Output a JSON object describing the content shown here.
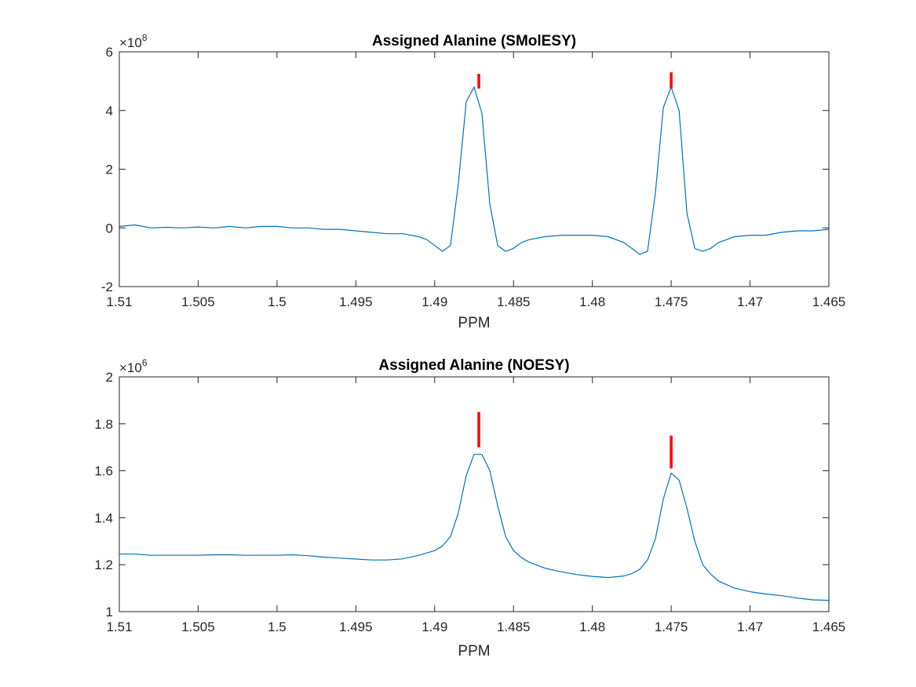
{
  "chart_data": [
    {
      "type": "line",
      "title": "Assigned Alanine (SMolESY)",
      "xlabel": "PPM",
      "ylabel": "",
      "x_reversed": true,
      "xlim": [
        1.465,
        1.51
      ],
      "ylim": [
        -2,
        6
      ],
      "y_multiplier": "×10",
      "y_exponent": "8",
      "xticks": [
        1.51,
        1.505,
        1.5,
        1.495,
        1.49,
        1.485,
        1.48,
        1.475,
        1.47,
        1.465
      ],
      "xtick_labels": [
        "1.51",
        "1.505",
        "1.5",
        "1.495",
        "1.49",
        "1.485",
        "1.48",
        "1.475",
        "1.47",
        "1.465"
      ],
      "yticks": [
        -2,
        0,
        2,
        4,
        6
      ],
      "ytick_labels": [
        "-2",
        "0",
        "2",
        "4",
        "6"
      ],
      "grid": false,
      "line_color": "#0072BD",
      "marker_color": "#FF0000",
      "series": [
        {
          "x": [
            1.51,
            1.509,
            1.508,
            1.507,
            1.506,
            1.505,
            1.504,
            1.503,
            1.502,
            1.501,
            1.5,
            1.499,
            1.498,
            1.497,
            1.496,
            1.495,
            1.494,
            1.493,
            1.492,
            1.491,
            1.4905,
            1.4895,
            1.489,
            1.4885,
            1.488,
            1.4875,
            1.487,
            1.4865,
            1.486,
            1.4855,
            1.485,
            1.4845,
            1.484,
            1.483,
            1.482,
            1.481,
            1.48,
            1.479,
            1.478,
            1.4775,
            1.477,
            1.4765,
            1.476,
            1.4755,
            1.475,
            1.4745,
            1.474,
            1.4735,
            1.473,
            1.4725,
            1.472,
            1.471,
            1.47,
            1.469,
            1.468,
            1.467,
            1.466,
            1.465
          ],
          "y": [
            0.05,
            0.1,
            0.0,
            0.02,
            0.0,
            0.03,
            0.0,
            0.05,
            0.0,
            0.05,
            0.05,
            0.0,
            0.0,
            -0.05,
            -0.05,
            -0.1,
            -0.15,
            -0.2,
            -0.2,
            -0.3,
            -0.4,
            -0.8,
            -0.6,
            1.5,
            4.3,
            4.8,
            3.9,
            0.8,
            -0.6,
            -0.8,
            -0.7,
            -0.5,
            -0.4,
            -0.3,
            -0.25,
            -0.25,
            -0.25,
            -0.3,
            -0.5,
            -0.7,
            -0.9,
            -0.8,
            1.2,
            4.1,
            4.8,
            4.0,
            0.5,
            -0.7,
            -0.8,
            -0.7,
            -0.5,
            -0.3,
            -0.25,
            -0.25,
            -0.15,
            -0.1,
            -0.1,
            -0.05
          ]
        }
      ],
      "peak_markers": [
        {
          "x": 1.4872,
          "y_from": 4.75,
          "y_to": 5.25
        },
        {
          "x": 1.475,
          "y_from": 4.75,
          "y_to": 5.3
        }
      ]
    },
    {
      "type": "line",
      "title": "Assigned Alanine (NOESY)",
      "xlabel": "PPM",
      "ylabel": "",
      "x_reversed": true,
      "xlim": [
        1.465,
        1.51
      ],
      "ylim": [
        1.0,
        2.0
      ],
      "y_multiplier": "×10",
      "y_exponent": "6",
      "xticks": [
        1.51,
        1.505,
        1.5,
        1.495,
        1.49,
        1.485,
        1.48,
        1.475,
        1.47,
        1.465
      ],
      "xtick_labels": [
        "1.51",
        "1.505",
        "1.5",
        "1.495",
        "1.49",
        "1.485",
        "1.48",
        "1.475",
        "1.47",
        "1.465"
      ],
      "yticks": [
        1.0,
        1.2,
        1.4,
        1.6,
        1.8,
        2.0
      ],
      "ytick_labels": [
        "1",
        "1.2",
        "1.4",
        "1.6",
        "1.8",
        "2"
      ],
      "grid": false,
      "line_color": "#0072BD",
      "marker_color": "#FF0000",
      "series": [
        {
          "x": [
            1.51,
            1.509,
            1.508,
            1.507,
            1.506,
            1.505,
            1.504,
            1.503,
            1.502,
            1.501,
            1.5,
            1.499,
            1.498,
            1.497,
            1.496,
            1.495,
            1.494,
            1.493,
            1.492,
            1.491,
            1.4905,
            1.49,
            1.4895,
            1.489,
            1.4885,
            1.488,
            1.4875,
            1.487,
            1.4865,
            1.486,
            1.4855,
            1.485,
            1.4845,
            1.484,
            1.483,
            1.482,
            1.481,
            1.48,
            1.479,
            1.478,
            1.4775,
            1.477,
            1.4765,
            1.476,
            1.4755,
            1.475,
            1.4745,
            1.474,
            1.4735,
            1.473,
            1.4725,
            1.472,
            1.471,
            1.47,
            1.469,
            1.468,
            1.467,
            1.466,
            1.465
          ],
          "y": [
            1.245,
            1.245,
            1.24,
            1.24,
            1.24,
            1.24,
            1.242,
            1.242,
            1.24,
            1.24,
            1.24,
            1.242,
            1.238,
            1.232,
            1.228,
            1.224,
            1.22,
            1.22,
            1.225,
            1.24,
            1.25,
            1.26,
            1.28,
            1.32,
            1.42,
            1.58,
            1.67,
            1.67,
            1.6,
            1.45,
            1.32,
            1.26,
            1.23,
            1.21,
            1.185,
            1.17,
            1.158,
            1.15,
            1.145,
            1.152,
            1.162,
            1.18,
            1.22,
            1.31,
            1.48,
            1.59,
            1.56,
            1.44,
            1.3,
            1.2,
            1.16,
            1.13,
            1.1,
            1.085,
            1.075,
            1.068,
            1.058,
            1.05,
            1.048
          ]
        }
      ],
      "peak_markers": [
        {
          "x": 1.4872,
          "y_from": 1.7,
          "y_to": 1.85
        },
        {
          "x": 1.475,
          "y_from": 1.61,
          "y_to": 1.75
        }
      ]
    }
  ]
}
